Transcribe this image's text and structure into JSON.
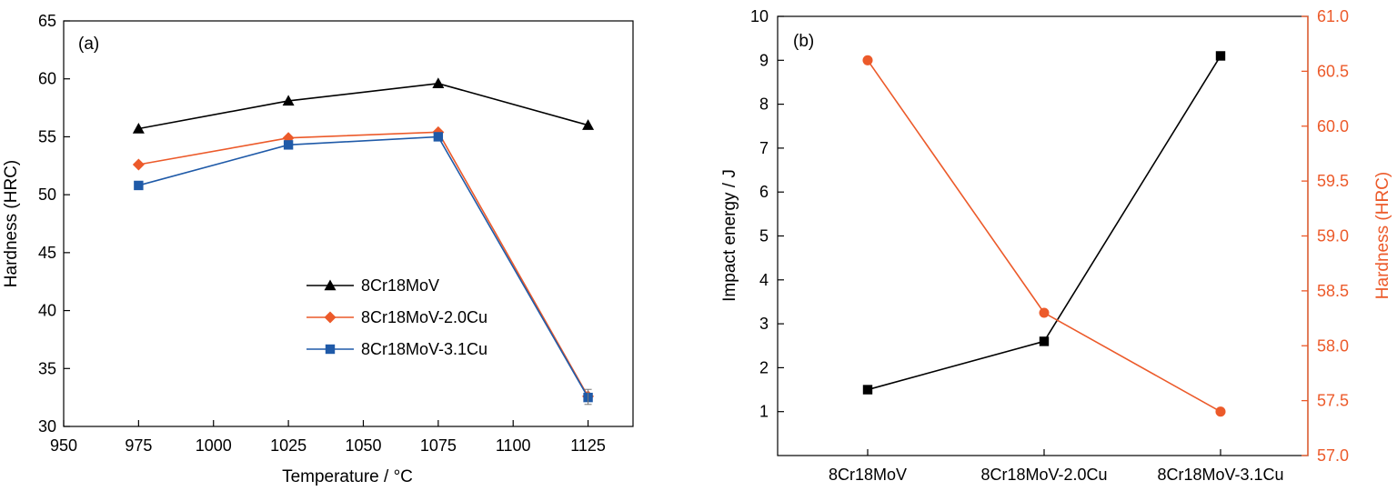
{
  "chart_data": [
    {
      "type": "line",
      "panel_label": "(a)",
      "xlabel": "Temperature / ",
      "xlabel_unit": "°C",
      "ylabel": "Hardness (HRC)",
      "xlim": [
        950,
        1140
      ],
      "ylim": [
        30,
        65
      ],
      "x_ticks": [
        "950",
        "975",
        "1000",
        "1025",
        "1050",
        "1075",
        "1100",
        "1125"
      ],
      "y_ticks": [
        "30",
        "35",
        "40",
        "45",
        "50",
        "55",
        "60",
        "65"
      ],
      "legend_position": "center-right",
      "series": [
        {
          "name": "8Cr18MoV",
          "color": "#000000",
          "marker": "triangle",
          "x": [
            975,
            1025,
            1075,
            1125
          ],
          "y": [
            55.7,
            58.1,
            59.6,
            56.0
          ]
        },
        {
          "name": "8Cr18MoV-2.0Cu",
          "color": "#ec5a2a",
          "marker": "diamond",
          "x": [
            975,
            1025,
            1075,
            1125
          ],
          "y": [
            52.6,
            54.9,
            55.4,
            32.6
          ]
        },
        {
          "name": "8Cr18MoV-3.1Cu",
          "color": "#1f5aa8",
          "marker": "square",
          "x": [
            975,
            1025,
            1075,
            1125
          ],
          "y": [
            50.8,
            54.3,
            55.0,
            32.5
          ]
        }
      ]
    },
    {
      "type": "line",
      "panel_label": "(b)",
      "categories": [
        "8Cr18MoV",
        "8Cr18MoV-2.0Cu",
        "8Cr18MoV-3.1Cu"
      ],
      "ylabel": "Impact energy / J",
      "ylabel_right": "Hardness (HRC)",
      "ylim": [
        0,
        10
      ],
      "ylim_right": [
        57.0,
        61.0
      ],
      "y_ticks": [
        "1",
        "2",
        "3",
        "4",
        "5",
        "6",
        "7",
        "8",
        "9",
        "10"
      ],
      "y_ticks_right": [
        "57.0",
        "57.5",
        "58.0",
        "58.5",
        "59.0",
        "59.5",
        "60.0",
        "60.5",
        "61.0"
      ],
      "right_axis_color": "#ec5a2a",
      "series": [
        {
          "axis": "left",
          "color": "#000000",
          "marker": "square",
          "values": [
            1.5,
            2.6,
            9.1
          ]
        },
        {
          "axis": "right",
          "color": "#ec5a2a",
          "marker": "circle",
          "values": [
            60.6,
            58.3,
            57.4
          ]
        }
      ]
    }
  ]
}
